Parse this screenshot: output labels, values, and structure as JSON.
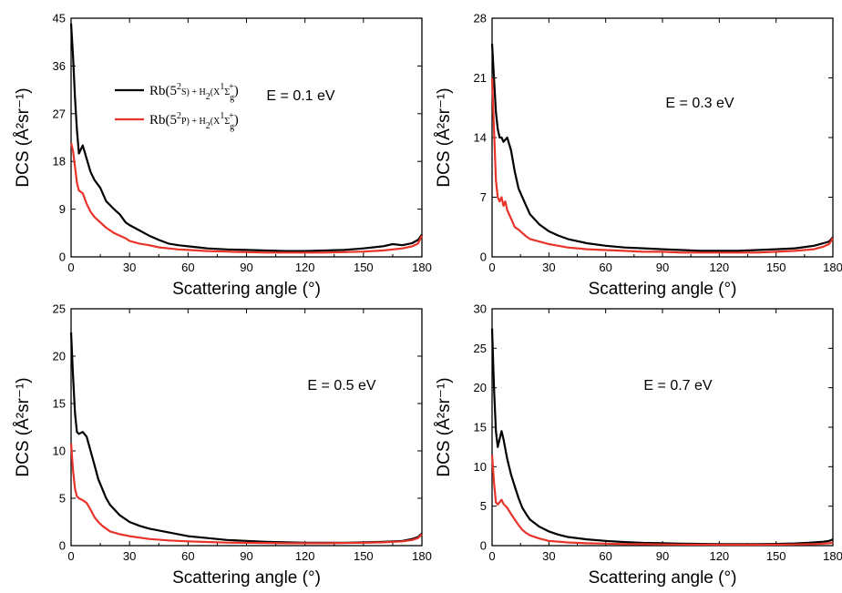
{
  "chart_data": [
    {
      "type": "line",
      "annotation": "E = 0.1 eV",
      "xlabel": "Scattering angle (°)",
      "ylabel": "DCS (Å²sr⁻¹)",
      "xlim": [
        0,
        180
      ],
      "ylim": [
        0,
        45
      ],
      "xticks": [
        "0",
        "30",
        "60",
        "90",
        "120",
        "150",
        "180"
      ],
      "yticks": [
        "0",
        "9",
        "18",
        "27",
        "36",
        "45"
      ],
      "legend": [
        {
          "parts": [
            "Rb(5",
            "2",
            "S) + H",
            "2",
            "(X",
            "1",
            "Σ",
            "g",
            "+",
            ")"
          ],
          "color": "#000000"
        },
        {
          "parts": [
            "Rb(5",
            "2",
            "P) + H",
            "2",
            "(X",
            "1",
            "Σ",
            "g",
            "+",
            ")"
          ],
          "color": "#e8332a"
        }
      ],
      "series": [
        {
          "color": "#000000",
          "x": [
            0,
            1,
            2,
            3,
            4,
            6,
            8,
            10,
            12,
            15,
            18,
            22,
            25,
            28,
            30,
            35,
            40,
            45,
            50,
            55,
            60,
            65,
            70,
            80,
            90,
            100,
            110,
            120,
            130,
            140,
            150,
            160,
            165,
            170,
            175,
            178,
            180
          ],
          "y": [
            44,
            38,
            30,
            24,
            19.5,
            21,
            18.5,
            16,
            14.5,
            13,
            10.5,
            9,
            8,
            6.5,
            6,
            5,
            4,
            3.2,
            2.5,
            2.2,
            2.0,
            1.8,
            1.6,
            1.4,
            1.3,
            1.2,
            1.1,
            1.1,
            1.2,
            1.3,
            1.6,
            2.0,
            2.4,
            2.2,
            2.6,
            3.2,
            4.2
          ]
        },
        {
          "color": "#e8332a",
          "x": [
            0,
            1,
            2,
            3,
            4,
            6,
            8,
            10,
            12,
            15,
            18,
            22,
            25,
            28,
            30,
            35,
            40,
            45,
            50,
            55,
            60,
            70,
            80,
            90,
            100,
            110,
            120,
            130,
            140,
            150,
            160,
            170,
            175,
            178,
            180
          ],
          "y": [
            21.5,
            20,
            17,
            14,
            12.5,
            12,
            10,
            8.5,
            7.5,
            6.5,
            5.5,
            4.5,
            4,
            3.5,
            3,
            2.5,
            2.2,
            1.8,
            1.6,
            1.4,
            1.3,
            1.1,
            1.0,
            0.9,
            0.8,
            0.8,
            0.8,
            0.8,
            0.9,
            1.0,
            1.2,
            1.6,
            2.0,
            2.5,
            4.0
          ]
        }
      ]
    },
    {
      "type": "line",
      "annotation": "E = 0.3 eV",
      "xlabel": "Scattering angle (°)",
      "ylabel": "DCS (Å²sr⁻¹)",
      "xlim": [
        0,
        180
      ],
      "ylim": [
        0,
        28
      ],
      "xticks": [
        "0",
        "30",
        "60",
        "90",
        "120",
        "150",
        "180"
      ],
      "yticks": [
        "0",
        "7",
        "14",
        "21",
        "28"
      ],
      "series": [
        {
          "color": "#000000",
          "x": [
            0,
            1,
            2,
            3,
            4,
            5,
            6,
            8,
            10,
            12,
            14,
            16,
            18,
            20,
            25,
            30,
            35,
            40,
            50,
            60,
            70,
            80,
            90,
            100,
            110,
            120,
            130,
            140,
            150,
            160,
            170,
            175,
            178,
            180
          ],
          "y": [
            25,
            21,
            17,
            15,
            14,
            14,
            13.5,
            14,
            12.5,
            10,
            8,
            7,
            6,
            5,
            3.8,
            3,
            2.5,
            2.1,
            1.6,
            1.3,
            1.1,
            1.0,
            0.9,
            0.8,
            0.7,
            0.7,
            0.7,
            0.8,
            0.9,
            1.0,
            1.3,
            1.6,
            1.8,
            2.3
          ]
        },
        {
          "color": "#e8332a",
          "x": [
            0,
            1,
            2,
            3,
            4,
            5,
            6,
            7,
            8,
            10,
            12,
            14,
            16,
            18,
            20,
            25,
            30,
            35,
            40,
            50,
            60,
            70,
            80,
            90,
            100,
            110,
            120,
            130,
            140,
            150,
            160,
            170,
            175,
            178,
            180
          ],
          "y": [
            21,
            15,
            9,
            7,
            6.5,
            7,
            6,
            6.5,
            5.5,
            4.5,
            3.5,
            3.2,
            2.8,
            2.4,
            2.1,
            1.8,
            1.5,
            1.3,
            1.1,
            0.9,
            0.8,
            0.7,
            0.6,
            0.6,
            0.5,
            0.5,
            0.5,
            0.5,
            0.5,
            0.6,
            0.7,
            0.9,
            1.2,
            1.5,
            2.2
          ]
        }
      ]
    },
    {
      "type": "line",
      "annotation": "E = 0.5 eV",
      "xlabel": "Scattering angle (°)",
      "ylabel": "DCS (Å²sr⁻¹)",
      "xlim": [
        0,
        180
      ],
      "ylim": [
        0,
        25
      ],
      "xticks": [
        "0",
        "30",
        "60",
        "90",
        "120",
        "150",
        "180"
      ],
      "yticks": [
        "0",
        "5",
        "10",
        "15",
        "20",
        "25"
      ],
      "series": [
        {
          "color": "#000000",
          "x": [
            0,
            1,
            2,
            3,
            4,
            6,
            8,
            10,
            12,
            14,
            16,
            18,
            20,
            25,
            30,
            35,
            40,
            50,
            60,
            70,
            80,
            90,
            100,
            110,
            120,
            130,
            140,
            150,
            160,
            170,
            175,
            178,
            180
          ],
          "y": [
            22.5,
            18,
            14,
            12,
            11.8,
            12,
            11.5,
            10,
            8.5,
            7,
            6,
            5,
            4.3,
            3.2,
            2.5,
            2.1,
            1.8,
            1.4,
            1.0,
            0.8,
            0.6,
            0.5,
            0.4,
            0.35,
            0.3,
            0.3,
            0.3,
            0.35,
            0.4,
            0.5,
            0.7,
            0.9,
            1.3
          ]
        },
        {
          "color": "#e8332a",
          "x": [
            0,
            1,
            2,
            3,
            4,
            6,
            8,
            10,
            12,
            14,
            16,
            18,
            20,
            25,
            30,
            40,
            50,
            60,
            70,
            80,
            90,
            100,
            110,
            120,
            130,
            140,
            150,
            160,
            170,
            175,
            178,
            180
          ],
          "y": [
            10.8,
            8,
            6,
            5.2,
            5,
            4.8,
            4.5,
            3.8,
            3,
            2.5,
            2.1,
            1.8,
            1.5,
            1.2,
            1.0,
            0.7,
            0.55,
            0.45,
            0.38,
            0.32,
            0.3,
            0.28,
            0.25,
            0.25,
            0.25,
            0.28,
            0.3,
            0.35,
            0.45,
            0.6,
            0.8,
            1.2
          ]
        }
      ]
    },
    {
      "type": "line",
      "annotation": "E = 0.7 eV",
      "xlabel": "Scattering angle (°)",
      "ylabel": "DCS (Å²sr⁻¹)",
      "xlim": [
        0,
        180
      ],
      "ylim": [
        0,
        30
      ],
      "xticks": [
        "0",
        "30",
        "60",
        "90",
        "120",
        "150",
        "180"
      ],
      "yticks": [
        "0",
        "5",
        "10",
        "15",
        "20",
        "25",
        "30"
      ],
      "series": [
        {
          "color": "#000000",
          "x": [
            0,
            1,
            2,
            3,
            4,
            5,
            6,
            8,
            10,
            12,
            14,
            16,
            18,
            20,
            25,
            30,
            35,
            40,
            50,
            60,
            70,
            80,
            90,
            100,
            110,
            120,
            130,
            140,
            150,
            160,
            170,
            175,
            178,
            180
          ],
          "y": [
            27.5,
            20,
            14.5,
            12.5,
            13.5,
            14.5,
            13.5,
            11,
            9,
            7.5,
            6,
            4.8,
            4,
            3.3,
            2.4,
            1.8,
            1.4,
            1.1,
            0.8,
            0.6,
            0.45,
            0.35,
            0.3,
            0.25,
            0.22,
            0.2,
            0.2,
            0.2,
            0.22,
            0.28,
            0.4,
            0.5,
            0.6,
            0.8
          ]
        },
        {
          "color": "#e8332a",
          "x": [
            0,
            1,
            2,
            3,
            4,
            5,
            6,
            8,
            10,
            12,
            14,
            16,
            18,
            20,
            25,
            30,
            40,
            50,
            60,
            70,
            80,
            90,
            100,
            110,
            120,
            130,
            140,
            150,
            160,
            170,
            175,
            178,
            180
          ],
          "y": [
            11.5,
            8,
            5.5,
            5.2,
            5.5,
            5.8,
            5.3,
            4.8,
            4,
            3.3,
            2.6,
            2.0,
            1.6,
            1.3,
            0.9,
            0.6,
            0.4,
            0.3,
            0.25,
            0.2,
            0.18,
            0.15,
            0.14,
            0.13,
            0.12,
            0.12,
            0.12,
            0.13,
            0.15,
            0.2,
            0.25,
            0.3,
            0.4
          ]
        }
      ]
    }
  ]
}
